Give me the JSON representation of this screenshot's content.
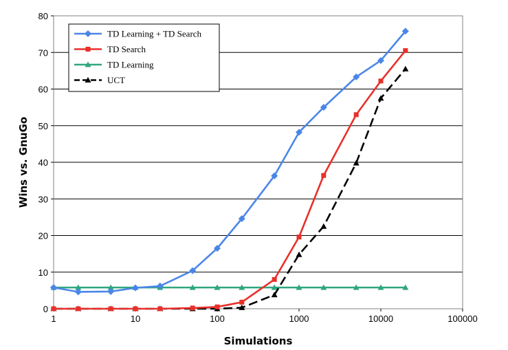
{
  "chart_data": {
    "type": "line",
    "xscale": "log",
    "xlabel": "Simulations",
    "ylabel": "Wins vs. GnuGo",
    "xlim": [
      1,
      100000
    ],
    "ylim": [
      0,
      80
    ],
    "xticks": [
      "1",
      "10",
      "100",
      "1000",
      "10000",
      "100000"
    ],
    "yticks": [
      "0",
      "10",
      "20",
      "30",
      "40",
      "50",
      "60",
      "70",
      "80"
    ],
    "grid": "horizontal",
    "legend_position": "top-left",
    "series": [
      {
        "name": "TD Learning + TD Search",
        "color": "#4a86e8",
        "marker": "diamond",
        "dash": "solid",
        "points": [
          [
            1,
            5.8
          ],
          [
            2,
            4.6
          ],
          [
            5,
            4.7
          ],
          [
            10,
            5.7
          ],
          [
            20,
            6.2
          ],
          [
            50,
            10.4
          ],
          [
            100,
            16.5
          ],
          [
            200,
            24.6
          ],
          [
            500,
            36.3
          ],
          [
            1000,
            48.2
          ],
          [
            2000,
            55.0
          ],
          [
            5000,
            63.3
          ],
          [
            10000,
            67.8
          ],
          [
            20000,
            75.8
          ]
        ]
      },
      {
        "name": "TD Search",
        "color": "#e8302a",
        "marker": "square",
        "dash": "solid",
        "points": [
          [
            1,
            0.0
          ],
          [
            2,
            0.0
          ],
          [
            5,
            0.0
          ],
          [
            10,
            0.0
          ],
          [
            20,
            0.0
          ],
          [
            50,
            0.2
          ],
          [
            100,
            0.5
          ],
          [
            200,
            1.8
          ],
          [
            500,
            8.0
          ],
          [
            1000,
            19.6
          ],
          [
            2000,
            36.4
          ],
          [
            5000,
            53.0
          ],
          [
            10000,
            62.2
          ],
          [
            20000,
            70.5
          ]
        ]
      },
      {
        "name": "TD Learning",
        "color": "#2fa67e",
        "marker": "triangle",
        "dash": "solid",
        "points": [
          [
            1,
            5.8
          ],
          [
            2,
            5.8
          ],
          [
            5,
            5.8
          ],
          [
            10,
            5.8
          ],
          [
            20,
            5.8
          ],
          [
            50,
            5.8
          ],
          [
            100,
            5.8
          ],
          [
            200,
            5.8
          ],
          [
            500,
            5.8
          ],
          [
            1000,
            5.8
          ],
          [
            2000,
            5.8
          ],
          [
            5000,
            5.8
          ],
          [
            10000,
            5.8
          ],
          [
            20000,
            5.8
          ]
        ]
      },
      {
        "name": "UCT",
        "color": "#000000",
        "marker": "triangle",
        "dash": "dashed",
        "points": [
          [
            1,
            0.0
          ],
          [
            2,
            0.0
          ],
          [
            5,
            0.0
          ],
          [
            10,
            0.0
          ],
          [
            20,
            0.0
          ],
          [
            50,
            0.0
          ],
          [
            100,
            0.0
          ],
          [
            200,
            0.3
          ],
          [
            500,
            3.8
          ],
          [
            1000,
            14.8
          ],
          [
            2000,
            22.5
          ],
          [
            5000,
            39.8
          ],
          [
            10000,
            57.5
          ],
          [
            20000,
            65.5
          ]
        ]
      }
    ]
  }
}
